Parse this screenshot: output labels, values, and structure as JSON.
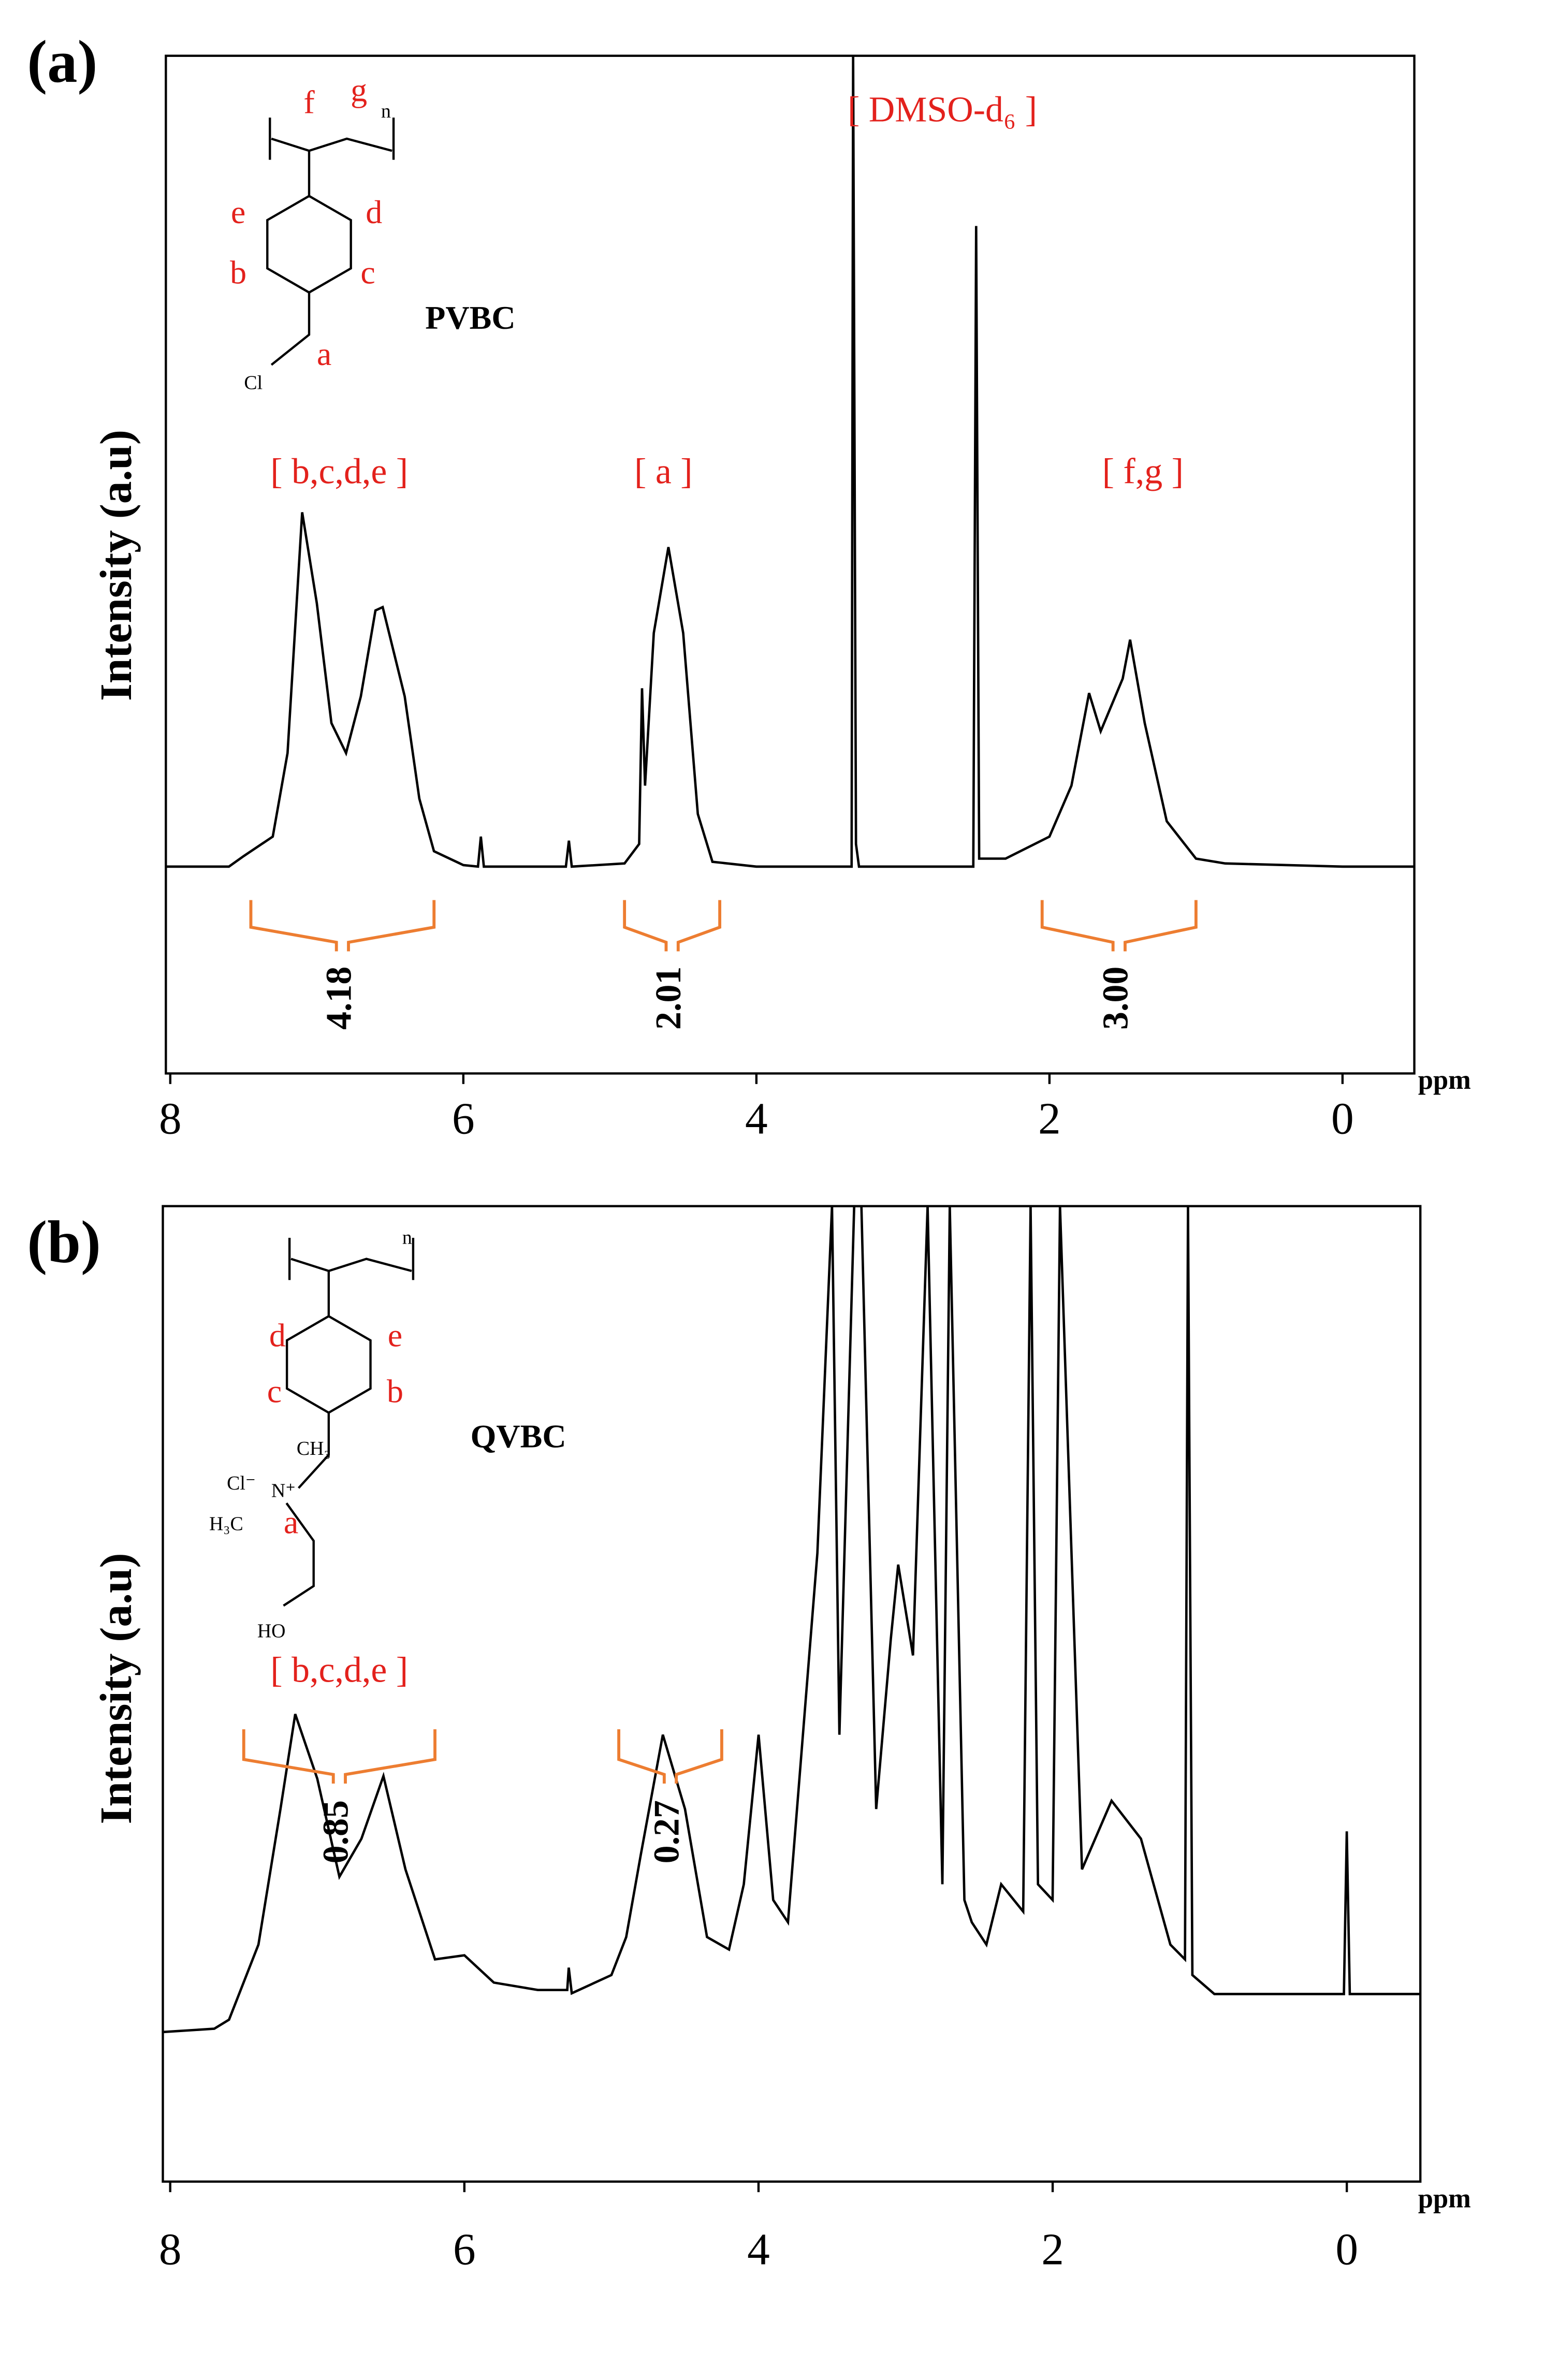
{
  "chart_data": [
    {
      "type": "line",
      "panel_label": "(a)",
      "x_label": "ppm",
      "y_label": "Intensity (a.u)",
      "xlim": [
        8.03,
        -0.49
      ],
      "ylim": [
        -25.5,
        100
      ],
      "xticks": [
        8,
        6,
        4,
        2,
        0
      ],
      "color": "#000000",
      "x": [
        8.03,
        7.6,
        7.5,
        7.3,
        7.2,
        7.1,
        7.0,
        6.9,
        6.8,
        6.7,
        6.6,
        6.55,
        6.4,
        6.3,
        6.2,
        6.0,
        5.9,
        5.88,
        5.86,
        5.3,
        5.28,
        5.26,
        4.9,
        4.8,
        4.78,
        4.76,
        4.7,
        4.6,
        4.5,
        4.4,
        4.3,
        4.0,
        3.35,
        3.34,
        3.32,
        3.3,
        2.52,
        2.5,
        2.48,
        2.3,
        2.0,
        1.85,
        1.73,
        1.65,
        1.5,
        1.45,
        1.35,
        1.2,
        1.0,
        0.8,
        0.0,
        -0.49
      ],
      "values": [
        0,
        0,
        1.3,
        3.7,
        14,
        43.7,
        32.5,
        17.7,
        14,
        21,
        31.6,
        32,
        21,
        8.4,
        1.9,
        0.2,
        0,
        3.7,
        0,
        0,
        3.2,
        0,
        0.4,
        2.8,
        22,
        10,
        28.8,
        39.4,
        28.8,
        6.5,
        0.6,
        0,
        0,
        100,
        2.8,
        0,
        0,
        79,
        1,
        1,
        3.7,
        10,
        21.4,
        16.7,
        23.2,
        28,
        17.7,
        5.6,
        1,
        0.4,
        0,
        0
      ],
      "annotations": [
        "[ b,c,d,e ]",
        "[ a ]",
        "[ DMSO-d₆ ]",
        "[ f,g ]"
      ],
      "integrals": [
        {
          "label": "4.18",
          "range": [
            7.45,
            6.2
          ]
        },
        {
          "label": "2.01",
          "range": [
            4.9,
            4.25
          ]
        },
        {
          "label": "3.00",
          "range": [
            2.05,
            1.0
          ]
        }
      ],
      "structure": {
        "name": "PVBC",
        "labels": [
          "f",
          "g",
          "e",
          "d",
          "b",
          "c",
          "a",
          "Cl",
          "n"
        ]
      }
    },
    {
      "type": "line",
      "panel_label": "(b)",
      "x_label": "ppm",
      "y_label": "Intensity (a.u)",
      "xlim": [
        8.05,
        -0.5
      ],
      "ylim": [
        -18.1,
        100
      ],
      "xticks": [
        8,
        6,
        4,
        2,
        0
      ],
      "color": "#000000",
      "x": [
        8.05,
        7.7,
        7.6,
        7.4,
        7.25,
        7.15,
        7.0,
        6.85,
        6.7,
        6.55,
        6.4,
        6.2,
        6.0,
        5.8,
        5.5,
        5.3,
        5.29,
        5.27,
        5.0,
        4.9,
        4.8,
        4.65,
        4.5,
        4.35,
        4.2,
        4.1,
        4.0,
        3.9,
        3.8,
        3.6,
        3.5,
        3.45,
        3.35,
        3.3,
        3.2,
        3.1,
        3.05,
        2.95,
        2.85,
        2.75,
        2.7,
        2.6,
        2.55,
        2.45,
        2.35,
        2.2,
        2.15,
        2.1,
        2.0,
        1.95,
        1.8,
        1.6,
        1.4,
        1.2,
        1.1,
        1.08,
        1.05,
        0.9,
        0.02,
        0.0,
        -0.02,
        -0.5
      ],
      "values": [
        0,
        0.4,
        1.5,
        10.6,
        27,
        38.5,
        30.7,
        18.8,
        23.4,
        31,
        19.7,
        8.8,
        9.3,
        6,
        5.1,
        5.1,
        7.8,
        4.7,
        6.9,
        11.5,
        21.5,
        36,
        27,
        11.5,
        10,
        17.9,
        36,
        16,
        13.3,
        58,
        100,
        36,
        100,
        100,
        27,
        47.6,
        56.6,
        45.6,
        100,
        17.9,
        100,
        16,
        13.3,
        10.6,
        17.9,
        14.6,
        100,
        17.9,
        16,
        100,
        19.7,
        28,
        23.4,
        10.6,
        8.8,
        100,
        6.9,
        4.6,
        4.6,
        24.3,
        4.6,
        4.6
      ],
      "annotations": [
        "[ b,c,d,e ]"
      ],
      "integrals": [
        {
          "label": "0.85",
          "range": [
            7.5,
            6.2
          ]
        },
        {
          "label": "0.27",
          "range": [
            4.95,
            4.25
          ]
        }
      ],
      "structure": {
        "name": "QVBC",
        "labels": [
          "d",
          "e",
          "c",
          "b",
          "a",
          "Cl⁻",
          "CH₃",
          "H₃C",
          "N⁺",
          "HO",
          "n"
        ]
      }
    }
  ]
}
